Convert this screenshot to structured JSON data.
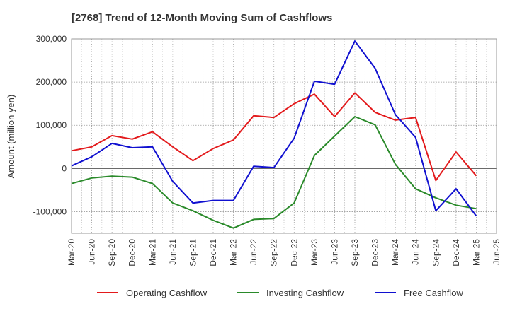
{
  "chart_data": {
    "type": "line",
    "title": "[2768]  Trend of 12-Month Moving Sum of Cashflows",
    "xlabel": "",
    "ylabel": "Amount (million yen)",
    "ylim": [
      -150000,
      300000
    ],
    "yticks": [
      300000,
      200000,
      100000,
      0,
      -100000
    ],
    "ytick_labels": [
      "300,000",
      "200,000",
      "100,000",
      "0",
      "-100,000"
    ],
    "categories": [
      "Mar-20",
      "Jun-20",
      "Sep-20",
      "Dec-20",
      "Mar-21",
      "Jun-21",
      "Sep-21",
      "Dec-21",
      "Mar-22",
      "Jun-22",
      "Sep-22",
      "Dec-22",
      "Mar-23",
      "Jun-23",
      "Sep-23",
      "Dec-23",
      "Mar-24",
      "Jun-24",
      "Sep-24",
      "Dec-24",
      "Mar-25",
      "Jun-25"
    ],
    "grid": true,
    "legend_position": "bottom",
    "series": [
      {
        "name": "Operating Cashflow",
        "color": "#e31a1c",
        "values": [
          41000,
          50000,
          76000,
          68000,
          85000,
          50000,
          18000,
          46000,
          66000,
          122000,
          118000,
          150000,
          172000,
          120000,
          175000,
          130000,
          112000,
          118000,
          -28000,
          38000,
          -17000,
          null
        ]
      },
      {
        "name": "Investing Cashflow",
        "color": "#2a8a2a",
        "values": [
          -35000,
          -22000,
          -18000,
          -20000,
          -35000,
          -80000,
          -98000,
          -120000,
          -138000,
          -118000,
          -116000,
          -80000,
          30000,
          75000,
          120000,
          101000,
          10000,
          -47000,
          -68000,
          -85000,
          -93000,
          null
        ]
      },
      {
        "name": "Free Cashflow",
        "color": "#1010d0",
        "values": [
          6000,
          27000,
          58000,
          48000,
          50000,
          -30000,
          -80000,
          -74000,
          -74000,
          5000,
          2000,
          70000,
          202000,
          195000,
          295000,
          232000,
          125000,
          72000,
          -98000,
          -47000,
          -110000,
          null
        ]
      }
    ]
  }
}
